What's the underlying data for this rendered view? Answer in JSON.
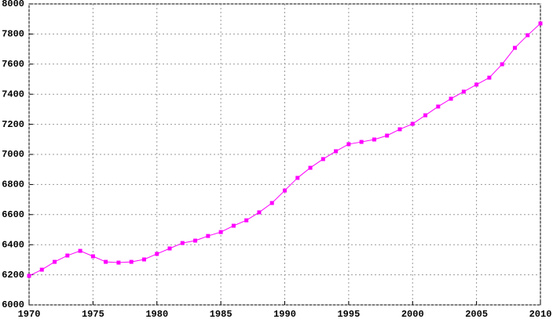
{
  "chart_data": {
    "type": "line",
    "x": [
      1970,
      1971,
      1972,
      1973,
      1974,
      1975,
      1976,
      1977,
      1978,
      1979,
      1980,
      1981,
      1982,
      1983,
      1984,
      1985,
      1986,
      1987,
      1988,
      1989,
      1990,
      1991,
      1992,
      1993,
      1994,
      1995,
      1996,
      1997,
      1998,
      1999,
      2000,
      2001,
      2002,
      2003,
      2004,
      2005,
      2006,
      2007,
      2008,
      2009,
      2010
    ],
    "values": [
      6193,
      6234,
      6286,
      6328,
      6359,
      6323,
      6286,
      6281,
      6286,
      6302,
      6339,
      6375,
      6411,
      6427,
      6458,
      6484,
      6526,
      6562,
      6615,
      6677,
      6760,
      6844,
      6911,
      6969,
      7021,
      7068,
      7083,
      7099,
      7125,
      7167,
      7203,
      7260,
      7318,
      7370,
      7417,
      7464,
      7510,
      7599,
      7708,
      7792,
      7870
    ],
    "color": "#ff00ff",
    "xlim": [
      1970,
      2010
    ],
    "xticks": [
      1970,
      1975,
      1980,
      1985,
      1990,
      1995,
      2000,
      2005,
      2010
    ],
    "ylim": [
      6000,
      8000
    ],
    "yticks": [
      6000,
      6200,
      6400,
      6600,
      6800,
      7000,
      7200,
      7400,
      7600,
      7800,
      8000
    ],
    "grid": true
  }
}
